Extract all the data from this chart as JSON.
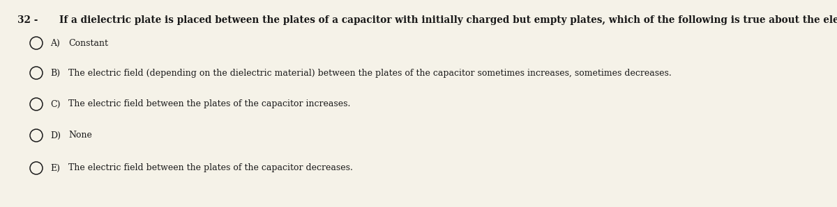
{
  "background_color": "#f5f2e8",
  "question_number": "32 -",
  "question_text": "If a dielectric plate is placed between the plates of a capacitor with initially charged but empty plates, which of the following is true about the electric field between the plates of the capacitor?",
  "options": [
    {
      "label": "A)",
      "text": "Constant"
    },
    {
      "label": "B)",
      "text": "The electric field (depending on the dielectric material) between the plates of the capacitor sometimes increases, sometimes decreases."
    },
    {
      "label": "C)",
      "text": "The electric field between the plates of the capacitor increases."
    },
    {
      "label": "D)",
      "text": "None"
    },
    {
      "label": "E)",
      "text": "The electric field between the plates of the capacitor decreases."
    }
  ],
  "question_fontsize": 9.8,
  "option_fontsize": 9.0,
  "qnum_fontsize": 9.8,
  "text_color": "#1a1a1a",
  "circle_color": "#1a1a1a",
  "figsize": [
    12.0,
    2.98
  ],
  "dpi": 100
}
